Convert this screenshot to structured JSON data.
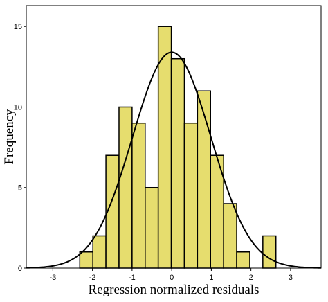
{
  "chart_data": {
    "type": "bar",
    "subtype": "histogram",
    "title": "",
    "xlabel": "Regression normalized residuals",
    "ylabel": "Frequency",
    "xlim": [
      -3.67,
      3.77
    ],
    "ylim": [
      0,
      16.3
    ],
    "x_ticks": [
      -3,
      -2,
      -1,
      0,
      1,
      2,
      3
    ],
    "x_tick_labels": [
      "-3",
      "-2",
      "-1",
      "0",
      "1",
      "2",
      "3"
    ],
    "y_ticks": [
      0,
      5,
      10,
      15
    ],
    "y_tick_labels": [
      "0",
      "5",
      "10",
      "15"
    ],
    "bin_width": 0.33,
    "bins": [
      {
        "start": -2.32,
        "count": 1
      },
      {
        "start": -1.99,
        "count": 2
      },
      {
        "start": -1.66,
        "count": 7
      },
      {
        "start": -1.33,
        "count": 10
      },
      {
        "start": -1.0,
        "count": 9
      },
      {
        "start": -0.67,
        "count": 5
      },
      {
        "start": -0.34,
        "count": 15
      },
      {
        "start": -0.01,
        "count": 13
      },
      {
        "start": 0.32,
        "count": 9
      },
      {
        "start": 0.65,
        "count": 11
      },
      {
        "start": 0.98,
        "count": 7
      },
      {
        "start": 1.31,
        "count": 4
      },
      {
        "start": 1.64,
        "count": 1
      },
      {
        "start": 2.3,
        "count": 2
      }
    ],
    "normal_curve": {
      "mean": 0,
      "sd": 0.99,
      "peak": 13.4
    },
    "grid": false,
    "bar_color": "#e6dd6e",
    "bar_edge_color": "#000000",
    "curve_color": "#000000"
  }
}
